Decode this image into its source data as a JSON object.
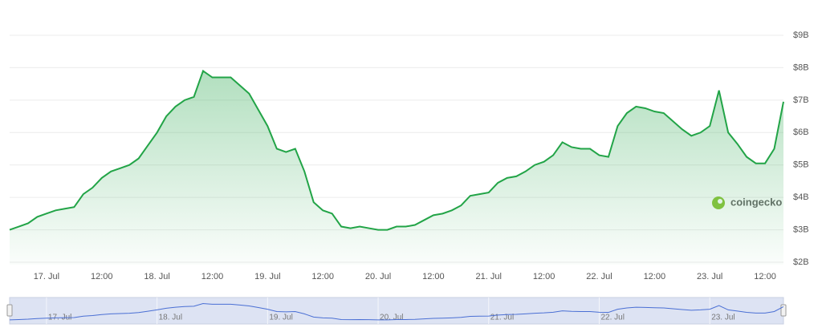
{
  "chart_data": {
    "type": "area",
    "watermark": "coingecko",
    "categories": [
      null,
      null,
      null,
      null,
      "17. Jul",
      null,
      null,
      null,
      null,
      null,
      "12:00",
      null,
      null,
      null,
      null,
      null,
      "18. Jul",
      null,
      null,
      null,
      null,
      null,
      "12:00",
      null,
      null,
      null,
      null,
      null,
      "19. Jul",
      null,
      null,
      null,
      null,
      null,
      "12:00",
      null,
      null,
      null,
      null,
      null,
      "20. Jul",
      null,
      null,
      null,
      null,
      null,
      "12:00",
      null,
      null,
      null,
      null,
      null,
      "21. Jul",
      null,
      null,
      null,
      null,
      null,
      "12:00",
      null,
      null,
      null,
      null,
      null,
      "22. Jul",
      null,
      null,
      null,
      null,
      null,
      "12:00",
      null,
      null,
      null,
      null,
      null,
      "23. Jul",
      null,
      null,
      null,
      null,
      null,
      "12:00",
      null,
      null
    ],
    "values": [
      3.0,
      3.1,
      3.2,
      3.4,
      3.5,
      3.6,
      3.65,
      3.7,
      4.1,
      4.3,
      4.6,
      4.8,
      4.9,
      5.0,
      5.2,
      5.6,
      6.0,
      6.5,
      6.8,
      7.0,
      7.1,
      7.9,
      7.7,
      7.7,
      7.7,
      7.45,
      7.2,
      6.7,
      6.2,
      5.5,
      5.4,
      5.5,
      4.8,
      3.85,
      3.6,
      3.5,
      3.1,
      3.05,
      3.1,
      3.05,
      3.0,
      3.0,
      3.1,
      3.1,
      3.15,
      3.3,
      3.45,
      3.5,
      3.6,
      3.75,
      4.05,
      4.1,
      4.15,
      4.45,
      4.6,
      4.65,
      4.8,
      5.0,
      5.1,
      5.3,
      5.7,
      5.55,
      5.5,
      5.5,
      5.3,
      5.25,
      6.2,
      6.6,
      6.8,
      6.75,
      6.65,
      6.6,
      6.35,
      6.1,
      5.9,
      6.0,
      6.2,
      7.3,
      6.0,
      5.65,
      5.25,
      5.05,
      5.05,
      5.5,
      6.95
    ],
    "color": "#22a447",
    "navigator_color": "#4a6fd4",
    "ylim": [
      2,
      9
    ],
    "yticks": [
      {
        "value": 2,
        "label": "$2B"
      },
      {
        "value": 3,
        "label": "$3B"
      },
      {
        "value": 4,
        "label": "$4B"
      },
      {
        "value": 5,
        "label": "$5B"
      },
      {
        "value": 6,
        "label": "$6B"
      },
      {
        "value": 7,
        "label": "$7B"
      },
      {
        "value": 8,
        "label": "$8B"
      },
      {
        "value": 9,
        "label": "$9B"
      }
    ],
    "grid": true
  }
}
